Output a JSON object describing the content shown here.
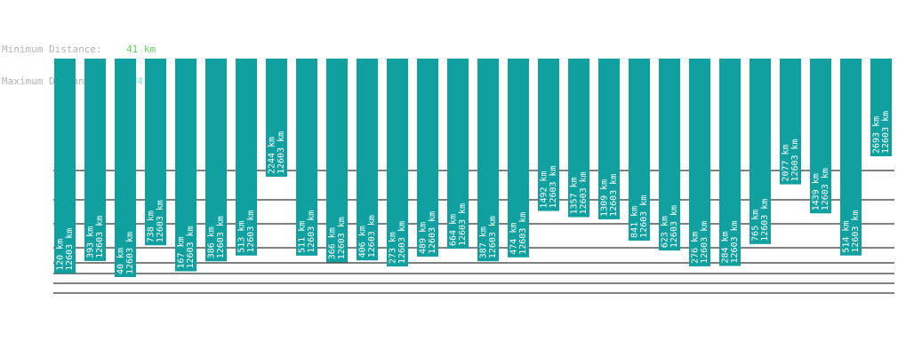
{
  "summary": {
    "min_label": "Minimum Distance:",
    "min_value": "41 km",
    "min_color": "#5cd65c",
    "max_label": "Maximum Distance:",
    "max_value": "12604 km",
    "max_color": "#7fe6e6"
  },
  "colors": {
    "bar": "#10a0a0",
    "label": "#ffffff",
    "grid": "#000000"
  },
  "chart_data": {
    "type": "bar",
    "orientation": "hanging-from-top",
    "grid": true,
    "bars": [
      {
        "value": 120,
        "label_top": "120 km",
        "label_bottom": "12603 km"
      },
      {
        "value": 393,
        "label_top": "393 km",
        "label_bottom": "12603 km"
      },
      {
        "value": 40,
        "label_top": "40 km",
        "label_bottom": "12603 km"
      },
      {
        "value": 738,
        "label_top": "738 km",
        "label_bottom": "12603 km"
      },
      {
        "value": 167,
        "label_top": "167 km",
        "label_bottom": "12603 km"
      },
      {
        "value": 386,
        "label_top": "386 km",
        "label_bottom": "12603 km"
      },
      {
        "value": 513,
        "label_top": "513 km",
        "label_bottom": "12603 km"
      },
      {
        "value": 2244,
        "label_top": "2244 km",
        "label_bottom": "12603 km"
      },
      {
        "value": 511,
        "label_top": "511 km",
        "label_bottom": "12603 km"
      },
      {
        "value": 366,
        "label_top": "366 km",
        "label_bottom": "12603 km"
      },
      {
        "value": 406,
        "label_top": "406 km",
        "label_bottom": "12603 km"
      },
      {
        "value": 273,
        "label_top": "273 km",
        "label_bottom": "12603 km"
      },
      {
        "value": 489,
        "label_top": "489 km",
        "label_bottom": "12603 km"
      },
      {
        "value": 664,
        "label_top": "664 km",
        "label_bottom": "12603 km"
      },
      {
        "value": 387,
        "label_top": "387 km",
        "label_bottom": "12603 km"
      },
      {
        "value": 474,
        "label_top": "474 km",
        "label_bottom": "12603 km"
      },
      {
        "value": 1492,
        "label_top": "1492 km",
        "label_bottom": "12603 km"
      },
      {
        "value": 1357,
        "label_top": "1357 km",
        "label_bottom": "12603 km"
      },
      {
        "value": 1309,
        "label_top": "1309 km",
        "label_bottom": "12603 km"
      },
      {
        "value": 841,
        "label_top": "841 km",
        "label_bottom": "12603 km"
      },
      {
        "value": 623,
        "label_top": "623 km",
        "label_bottom": "12603 km"
      },
      {
        "value": 276,
        "label_top": "276 km",
        "label_bottom": "12603 km"
      },
      {
        "value": 284,
        "label_top": "284 km",
        "label_bottom": "12603 km"
      },
      {
        "value": 765,
        "label_top": "765 km",
        "label_bottom": "12603 km"
      },
      {
        "value": 2077,
        "label_top": "2077 km",
        "label_bottom": "12603 km"
      },
      {
        "value": 1439,
        "label_top": "1439 km",
        "label_bottom": "12603 km"
      },
      {
        "value": 514,
        "label_top": "514 km",
        "label_bottom": "12603 km"
      },
      {
        "value": 2693,
        "label_top": "2693 km",
        "label_bottom": "12603 km"
      }
    ]
  }
}
